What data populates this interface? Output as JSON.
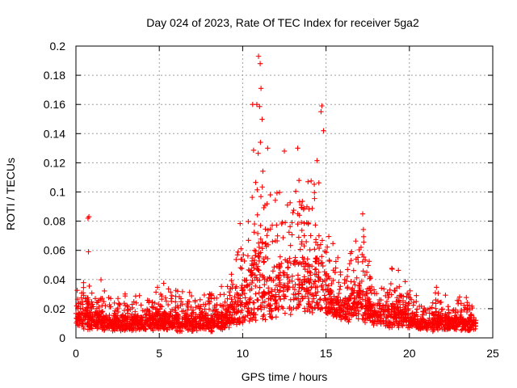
{
  "chart_data": {
    "type": "scatter",
    "title": "Day 024 of 2023, Rate Of TEC Index for receiver 5ga2",
    "xlabel": "GPS time / hours",
    "ylabel": "ROTI / TECUs",
    "xlim": [
      0,
      25
    ],
    "ylim": [
      0,
      0.2
    ],
    "xticks": [
      "0",
      "5",
      "10",
      "15",
      "20",
      "25"
    ],
    "yticks": [
      "0",
      "0.02",
      "0.04",
      "0.06",
      "0.08",
      "0.1",
      "0.12",
      "0.14",
      "0.16",
      "0.18",
      "0.2"
    ],
    "grid": true,
    "marker": "+",
    "color": "#ff0000",
    "envelope": {
      "hours": [
        0,
        0.5,
        1,
        1.5,
        2,
        3,
        4,
        5,
        6,
        7,
        8,
        9,
        9.5,
        10,
        10.5,
        11,
        11.5,
        12,
        12.5,
        13,
        13.5,
        14,
        14.5,
        15,
        15.5,
        16,
        16.5,
        17,
        17.5,
        18,
        18.5,
        19,
        19.5,
        20,
        20.5,
        21,
        21.5,
        22,
        22.5,
        23,
        23.5,
        24
      ],
      "baseline": [
        0.008,
        0.008,
        0.007,
        0.007,
        0.006,
        0.006,
        0.006,
        0.006,
        0.006,
        0.006,
        0.006,
        0.007,
        0.008,
        0.01,
        0.012,
        0.013,
        0.014,
        0.015,
        0.016,
        0.017,
        0.018,
        0.019,
        0.018,
        0.016,
        0.014,
        0.013,
        0.012,
        0.012,
        0.011,
        0.01,
        0.009,
        0.008,
        0.008,
        0.007,
        0.007,
        0.006,
        0.006,
        0.006,
        0.006,
        0.006,
        0.006,
        0.006
      ],
      "peak": [
        0.035,
        0.04,
        0.03,
        0.04,
        0.028,
        0.03,
        0.03,
        0.04,
        0.035,
        0.032,
        0.038,
        0.04,
        0.065,
        0.09,
        0.12,
        0.19,
        0.11,
        0.1,
        0.13,
        0.12,
        0.13,
        0.11,
        0.16,
        0.09,
        0.06,
        0.05,
        0.06,
        0.085,
        0.065,
        0.04,
        0.045,
        0.05,
        0.045,
        0.04,
        0.025,
        0.03,
        0.035,
        0.03,
        0.025,
        0.028,
        0.03,
        0.025
      ]
    },
    "outliers": [
      {
        "x": 0.72,
        "y": 0.082
      },
      {
        "x": 0.78,
        "y": 0.083
      },
      {
        "x": 0.75,
        "y": 0.059
      },
      {
        "x": 10.95,
        "y": 0.193
      },
      {
        "x": 11.05,
        "y": 0.188
      },
      {
        "x": 10.85,
        "y": 0.16
      },
      {
        "x": 11.1,
        "y": 0.171
      },
      {
        "x": 14.75,
        "y": 0.159
      },
      {
        "x": 14.7,
        "y": 0.155
      },
      {
        "x": 14.85,
        "y": 0.142
      },
      {
        "x": 12.5,
        "y": 0.128
      },
      {
        "x": 13.3,
        "y": 0.13
      },
      {
        "x": 11.5,
        "y": 0.13
      },
      {
        "x": 10.6,
        "y": 0.16
      },
      {
        "x": 17.2,
        "y": 0.085
      }
    ]
  }
}
